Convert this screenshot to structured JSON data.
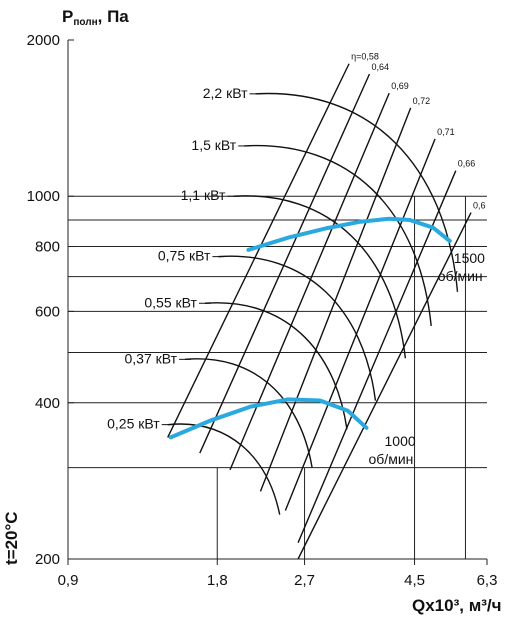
{
  "chart_data": {
    "type": "line",
    "y_axis_title": "Pполн, Па",
    "y_axis_title_main": "P",
    "y_axis_title_sub": "полн",
    "y_axis_title_unit": ", Па",
    "x_axis_title": "Qx10³, м³/ч",
    "temperature_label": "t=20°C",
    "x_scale": "log",
    "y_scale": "log",
    "xlim": [
      0.9,
      6.3
    ],
    "ylim": [
      200,
      2000
    ],
    "x_ticks": [
      {
        "v": 0.9,
        "label": "0,9"
      },
      {
        "v": 1.8,
        "label": "1,8"
      },
      {
        "v": 2.7,
        "label": "2,7"
      },
      {
        "v": 4.5,
        "label": "4,5"
      },
      {
        "v": 6.3,
        "label": "6,3"
      }
    ],
    "y_ticks": [
      {
        "v": 200,
        "label": "200"
      },
      {
        "v": 400,
        "label": "400"
      },
      {
        "v": 600,
        "label": "600"
      },
      {
        "v": 800,
        "label": "800"
      },
      {
        "v": 1000,
        "label": "1000"
      },
      {
        "v": 2000,
        "label": "2000"
      }
    ],
    "y_gridlines": [
      300,
      400,
      500,
      600,
      700,
      800,
      900,
      1000
    ],
    "x_gridlines": [
      1.8,
      2.7,
      4.5,
      5.7
    ],
    "series": [
      {
        "name": "1500 об/мин",
        "label_rpm": "1500",
        "label_unit": "об/мин",
        "x": [
          2.08,
          2.5,
          3.0,
          3.5,
          4.0,
          4.4,
          4.9,
          5.3
        ],
        "y": [
          788,
          832,
          868,
          893,
          905,
          900,
          870,
          820
        ]
      },
      {
        "name": "1000 об/мин",
        "label_rpm": "1000",
        "label_unit": "об/мин",
        "x": [
          1.45,
          1.75,
          2.1,
          2.5,
          2.9,
          3.3,
          3.6
        ],
        "y": [
          343,
          370,
          393,
          406,
          404,
          386,
          358
        ]
      }
    ],
    "power_labels": [
      {
        "label": "2,2 кВт",
        "x": 2.15,
        "y": 1575
      },
      {
        "label": "1,5 кВт",
        "x": 2.04,
        "y": 1250
      },
      {
        "label": "1,1 кВт",
        "x": 1.94,
        "y": 1000
      },
      {
        "label": "0,75 кВт",
        "x": 1.81,
        "y": 765
      },
      {
        "label": "0,55 кВт",
        "x": 1.7,
        "y": 622
      },
      {
        "label": "0,37 кВт",
        "x": 1.55,
        "y": 485
      },
      {
        "label": "0,25 кВт",
        "x": 1.43,
        "y": 363
      }
    ],
    "efficiency_lines": [
      {
        "label": "η=0,58",
        "x1": 1.43,
        "y1": 343,
        "x2": 3.32,
        "y2": 1800
      },
      {
        "label": "0,64",
        "x1": 1.66,
        "y1": 320,
        "x2": 3.65,
        "y2": 1720
      },
      {
        "label": "0,69",
        "x1": 1.91,
        "y1": 297,
        "x2": 4.0,
        "y2": 1580
      },
      {
        "label": "0,72",
        "x1": 2.2,
        "y1": 270,
        "x2": 4.42,
        "y2": 1480
      },
      {
        "label": "0,71",
        "x1": 2.47,
        "y1": 248,
        "x2": 4.95,
        "y2": 1290
      },
      {
        "label": "0,66",
        "x1": 2.62,
        "y1": 215,
        "x2": 5.45,
        "y2": 1120
      },
      {
        "label": "0,6",
        "x1": 2.62,
        "y1": 200,
        "x2": 5.85,
        "y2": 930
      }
    ]
  }
}
